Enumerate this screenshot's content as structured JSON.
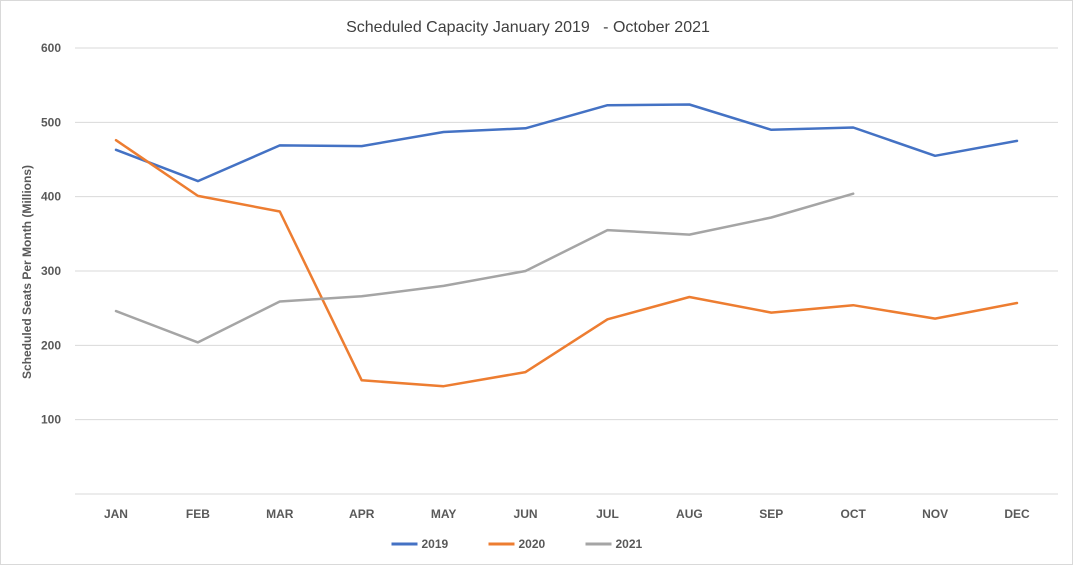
{
  "chart_data": {
    "type": "line",
    "title": "Scheduled Capacity January 2019   - October 2021",
    "xlabel": "",
    "ylabel": "Scheduled Seats Per Month (Millions)",
    "ylim": [
      0,
      600
    ],
    "yticks": [
      100,
      200,
      300,
      400,
      500,
      600
    ],
    "categories": [
      "JAN",
      "FEB",
      "MAR",
      "APR",
      "MAY",
      "JUN",
      "JUL",
      "AUG",
      "SEP",
      "OCT",
      "NOV",
      "DEC"
    ],
    "grid": true,
    "legend": "bottom",
    "series": [
      {
        "name": "2019",
        "color": "#4472C4",
        "values": [
          463,
          421,
          469,
          468,
          487,
          492,
          523,
          524,
          490,
          493,
          455,
          475
        ]
      },
      {
        "name": "2020",
        "color": "#ED7D31",
        "values": [
          476,
          401,
          380,
          153,
          145,
          164,
          235,
          265,
          244,
          254,
          236,
          257
        ]
      },
      {
        "name": "2021",
        "color": "#A5A5A5",
        "values": [
          246,
          204,
          259,
          266,
          280,
          300,
          355,
          349,
          372,
          404,
          null,
          null
        ]
      }
    ]
  }
}
